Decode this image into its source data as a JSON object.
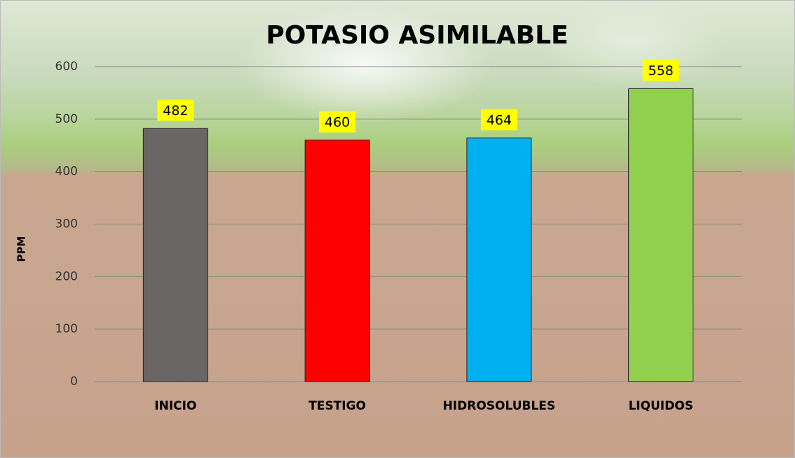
{
  "chart_data": {
    "type": "bar",
    "title": "POTASIO ASIMILABLE",
    "y_label": "PPM",
    "categories": [
      "INICIO",
      "TESTIGO",
      "HIDROSOLUBLES",
      "LIQUIDOS"
    ],
    "values": [
      482,
      460,
      464,
      558
    ],
    "colors": [
      "#6b6666",
      "#ff0000",
      "#00b0f0",
      "#92d050"
    ],
    "ylim": [
      0,
      600
    ],
    "yticks": [
      0,
      100,
      200,
      300,
      400,
      500,
      600
    ],
    "grid": true
  }
}
